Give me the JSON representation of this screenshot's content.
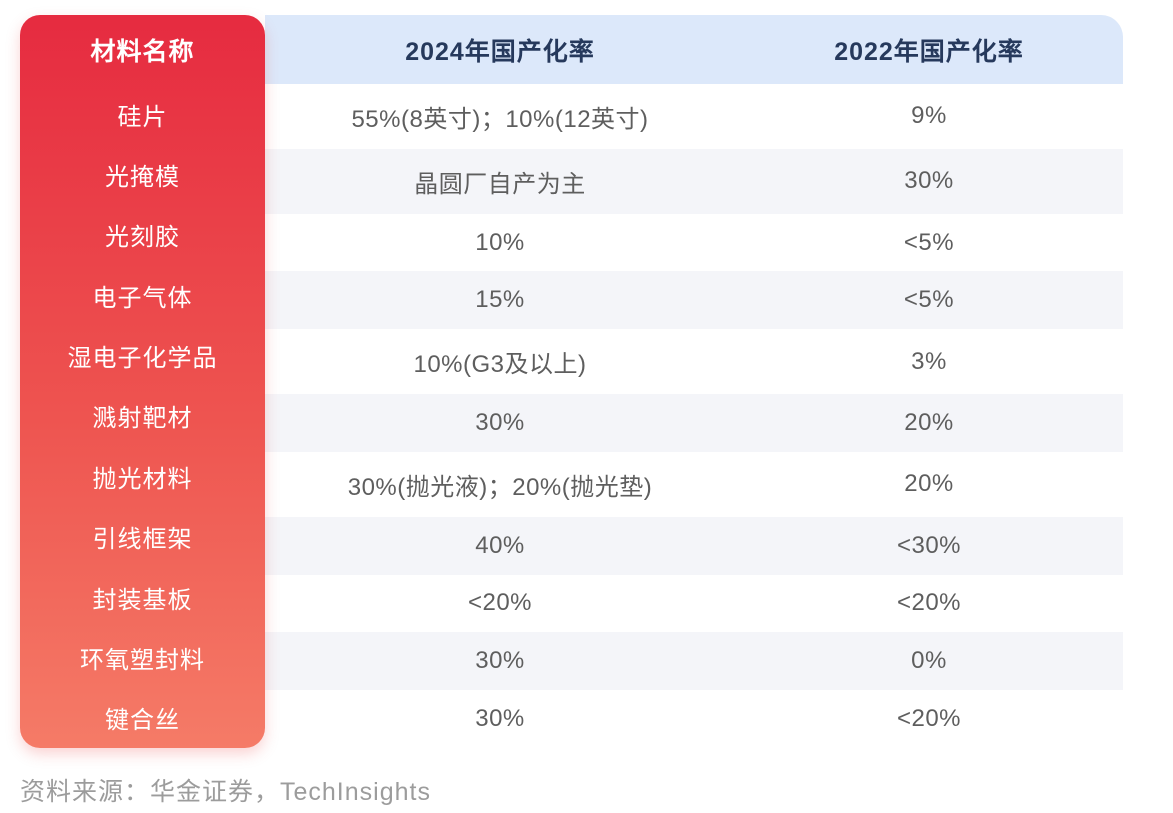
{
  "table": {
    "columns": [
      "材料名称",
      "2024年国产化率",
      "2022年国产化率"
    ],
    "rows": [
      {
        "name": "硅片",
        "r2024": "55%(8英寸)；10%(12英寸)",
        "r2022": "9%"
      },
      {
        "name": "光掩模",
        "r2024": "晶圆厂自产为主",
        "r2022": "30%"
      },
      {
        "name": "光刻胶",
        "r2024": "10%",
        "r2022": "<5%"
      },
      {
        "name": "电子气体",
        "r2024": "15%",
        "r2022": "<5%"
      },
      {
        "name": "湿电子化学品",
        "r2024": "10%(G3及以上)",
        "r2022": "3%"
      },
      {
        "name": "溅射靶材",
        "r2024": "30%",
        "r2022": "20%"
      },
      {
        "name": "抛光材料",
        "r2024": "30%(抛光液)；20%(抛光垫)",
        "r2022": "20%"
      },
      {
        "name": "引线框架",
        "r2024": "40%",
        "r2022": "<30%"
      },
      {
        "name": "封装基板",
        "r2024": "<20%",
        "r2022": "<20%"
      },
      {
        "name": "环氧塑封料",
        "r2024": "30%",
        "r2022": "0%"
      },
      {
        "name": "键合丝",
        "r2024": "30%",
        "r2022": "<20%"
      }
    ]
  },
  "footer": {
    "source": "资料来源：华金证券，TechInsights"
  },
  "colors": {
    "material_column_gradient_top": "#E62B40",
    "material_column_gradient_bottom": "#F57B67",
    "header_background": "#DCE8FA",
    "header_text": "#26395C",
    "row_alt_background": "#F4F5F9",
    "data_text": "#5E5E5E",
    "source_text": "#9C9C9C"
  },
  "chart_data": {
    "type": "table",
    "title": "",
    "columns": [
      "材料名称",
      "2024年国产化率",
      "2022年国产化率"
    ],
    "rows": [
      [
        "硅片",
        "55%(8英寸)；10%(12英寸)",
        "9%"
      ],
      [
        "光掩模",
        "晶圆厂自产为主",
        "30%"
      ],
      [
        "光刻胶",
        "10%",
        "<5%"
      ],
      [
        "电子气体",
        "15%",
        "<5%"
      ],
      [
        "湿电子化学品",
        "10%(G3及以上)",
        "3%"
      ],
      [
        "溅射靶材",
        "30%",
        "20%"
      ],
      [
        "抛光材料",
        "30%(抛光液)；20%(抛光垫)",
        "20%"
      ],
      [
        "引线框架",
        "40%",
        "<30%"
      ],
      [
        "封装基板",
        "<20%",
        "<20%"
      ],
      [
        "环氧塑封料",
        "30%",
        "0%"
      ],
      [
        "键合丝",
        "30%",
        "<20%"
      ]
    ],
    "source_note": "资料来源：华金证券，TechInsights"
  }
}
